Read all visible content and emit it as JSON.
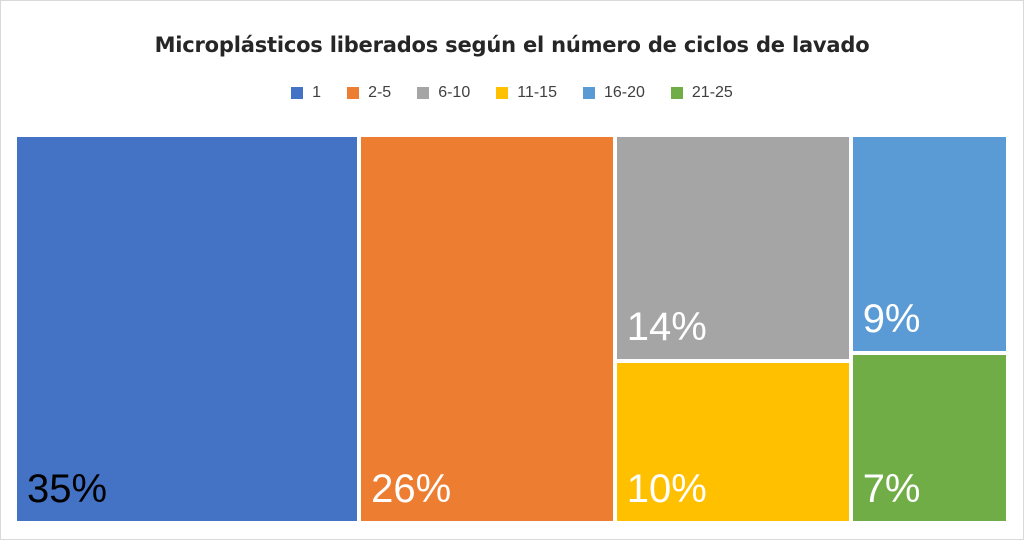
{
  "chart_data": {
    "type": "treemap",
    "title": "Microplásticos liberados según el número de ciclos de lavado",
    "categories": [
      "1",
      "2-5",
      "6-10",
      "11-15",
      "16-20",
      "21-25"
    ],
    "values": [
      35,
      26,
      14,
      10,
      9,
      7
    ],
    "labels": [
      "35%",
      "26%",
      "14%",
      "10%",
      "9%",
      "7%"
    ],
    "colors": [
      "#4472c4",
      "#ed7d31",
      "#a5a5a5",
      "#ffc000",
      "#5b9bd5",
      "#70ad47"
    ],
    "label_colors": [
      "#000000",
      "#ffffff",
      "#ffffff",
      "#ffffff",
      "#ffffff",
      "#ffffff"
    ],
    "legend_position": "top"
  }
}
